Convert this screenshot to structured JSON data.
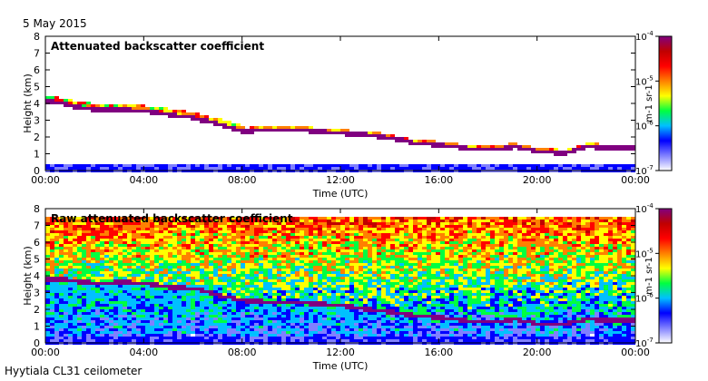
{
  "header": {
    "date": "5 May 2015"
  },
  "footer": {
    "instrument": "Hyytiala CL31 ceilometer"
  },
  "colors": {
    "scale": [
      "#ffffff",
      "#8080ff",
      "#0000ff",
      "#00c0ff",
      "#00ff40",
      "#ffff00",
      "#ff8000",
      "#ff0000",
      "#c00000",
      "#800080"
    ],
    "clear_sky": "#ffffff",
    "background_noise": "#0000cc"
  },
  "chart_data": [
    {
      "type": "heatmap",
      "panel_id": "attenuated",
      "title": "Attenuated backscatter coefficient",
      "xlabel": "Time (UTC)",
      "ylabel": "Height (km)",
      "xlim": [
        0,
        24
      ],
      "ylim": [
        0,
        8
      ],
      "x_ticks": [
        "00:00",
        "04:00",
        "08:00",
        "12:00",
        "16:00",
        "20:00",
        "00:00"
      ],
      "y_ticks": [
        "0",
        "1",
        "2",
        "3",
        "4",
        "5",
        "6",
        "7",
        "8"
      ],
      "colorbar": {
        "label": "m-1 sr-1",
        "ticks": [
          "10-7",
          "10-6",
          "10-5",
          "10-4"
        ],
        "scale": "log",
        "range": [
          1e-07,
          0.0001
        ]
      },
      "cloud_layer": {
        "time_h": [
          0.2,
          1.0,
          2.0,
          3.0,
          4.0,
          5.0,
          6.0,
          7.0,
          8.0,
          9.0,
          10.0,
          11.0,
          12.0,
          13.0,
          14.0,
          15.0,
          16.0,
          17.0,
          18.0,
          19.0,
          20.0,
          21.0,
          22.0,
          23.0,
          23.9
        ],
        "height_km": [
          4.2,
          3.9,
          3.7,
          3.7,
          3.6,
          3.4,
          3.2,
          2.8,
          2.4,
          2.5,
          2.5,
          2.4,
          2.3,
          2.2,
          2.0,
          1.7,
          1.6,
          1.4,
          1.3,
          1.5,
          1.2,
          1.1,
          1.5,
          1.4,
          1.4
        ]
      },
      "background_noise_top_km": 0.5
    },
    {
      "type": "heatmap",
      "panel_id": "raw",
      "title": "Raw attenuated backscatter coefficient",
      "xlabel": "Time (UTC)",
      "ylabel": "Height (km)",
      "xlim": [
        0,
        24
      ],
      "ylim": [
        0,
        8
      ],
      "x_ticks": [
        "00:00",
        "04:00",
        "08:00",
        "12:00",
        "16:00",
        "20:00",
        "00:00"
      ],
      "y_ticks": [
        "0",
        "1",
        "2",
        "3",
        "4",
        "5",
        "6",
        "7",
        "8"
      ],
      "colorbar": {
        "label": "m-1 sr-1",
        "ticks": [
          "10-7",
          "10-6",
          "10-5",
          "10-4"
        ],
        "scale": "log",
        "range": [
          1e-07,
          0.0001
        ]
      },
      "cloud_layer": {
        "time_h": [
          0.2,
          1.0,
          2.0,
          3.0,
          4.0,
          5.0,
          6.0,
          7.0,
          8.0,
          9.0,
          10.0,
          11.0,
          12.0,
          13.0,
          14.0,
          15.0,
          16.0,
          17.0,
          18.0,
          19.0,
          20.0,
          21.0,
          22.0,
          23.0,
          23.9
        ],
        "height_km": [
          3.9,
          3.8,
          3.6,
          3.7,
          3.6,
          3.4,
          3.3,
          2.9,
          2.6,
          2.5,
          2.5,
          2.4,
          2.3,
          2.1,
          1.9,
          1.7,
          1.6,
          1.4,
          1.3,
          1.5,
          1.2,
          1.2,
          1.5,
          1.4,
          1.4
        ]
      }
    }
  ]
}
